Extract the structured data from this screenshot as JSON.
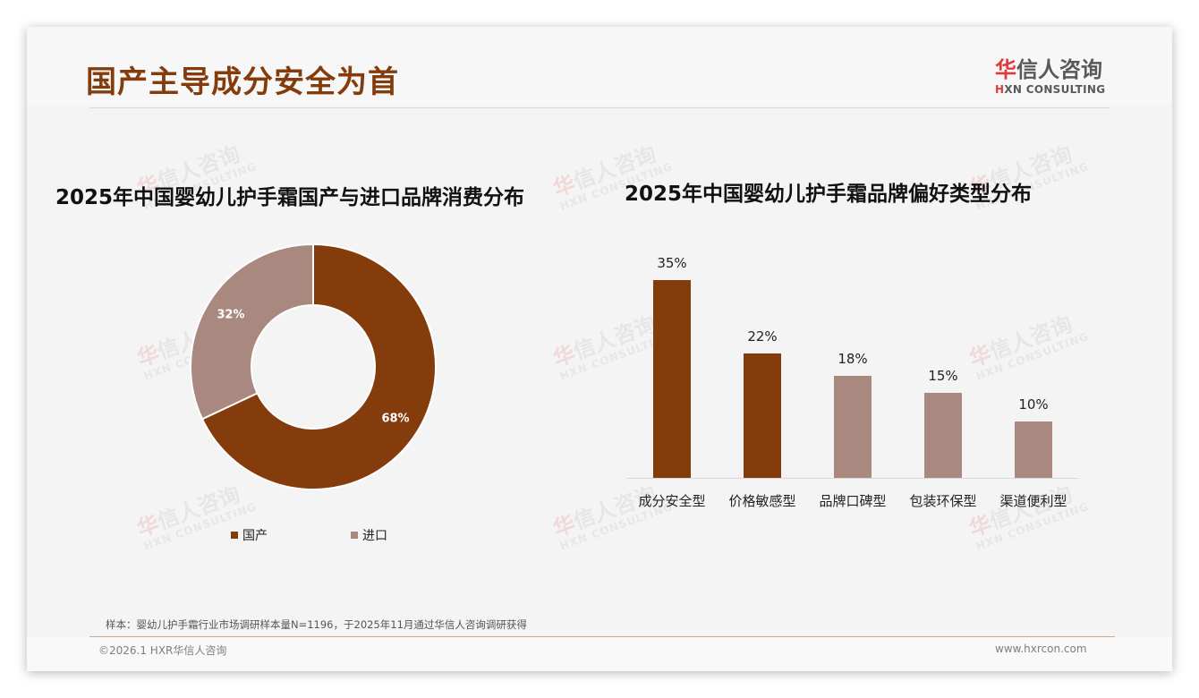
{
  "header": {
    "title": "国产主导成分安全为首",
    "logo": {
      "cn_accent": "华",
      "cn_rest": "信人咨询",
      "en_accent": "H",
      "en_rest": "XN CONSULTING"
    }
  },
  "watermark": {
    "cn_accent": "华",
    "cn_rest": "信人咨询",
    "en": "HXN CONSULTING"
  },
  "colors": {
    "primary": "#843c0c",
    "secondary": "#a9897f",
    "title": "#843c0c",
    "logo_red": "#e03a3a"
  },
  "left_chart": {
    "title": "2025年中国婴幼儿护手霜国产与进口品牌消费分布",
    "legend": [
      {
        "label": "国产",
        "color": "#843c0c"
      },
      {
        "label": "进口",
        "color": "#a9897f"
      }
    ]
  },
  "right_chart": {
    "title": "2025年中国婴幼儿护手霜品牌偏好类型分布"
  },
  "chart_data": [
    {
      "type": "pie",
      "variant": "donut",
      "title": "2025年中国婴幼儿护手霜国产与进口品牌消费分布",
      "categories": [
        "国产",
        "进口"
      ],
      "values": [
        68,
        32
      ],
      "labels": [
        "68%",
        "32%"
      ],
      "colors": [
        "#843c0c",
        "#a9897f"
      ],
      "legend_position": "bottom"
    },
    {
      "type": "bar",
      "title": "2025年中国婴幼儿护手霜品牌偏好类型分布",
      "categories": [
        "成分安全型",
        "价格敏感型",
        "品牌口碑型",
        "包装环保型",
        "渠道便利型"
      ],
      "values": [
        35,
        22,
        18,
        15,
        10
      ],
      "labels": [
        "35%",
        "22%",
        "18%",
        "15%",
        "10%"
      ],
      "colors": [
        "#843c0c",
        "#843c0c",
        "#a9897f",
        "#a9897f",
        "#a9897f"
      ],
      "xlabel": "",
      "ylabel": "",
      "grid": false,
      "unit": "%"
    }
  ],
  "footer": {
    "source": "样本：婴幼儿护手霜行业市场调研样本量N=1196，于2025年11月通过华信人咨询调研获得",
    "copyright": "©2026.1 HXR华信人咨询",
    "website": "www.hxrcon.com"
  }
}
